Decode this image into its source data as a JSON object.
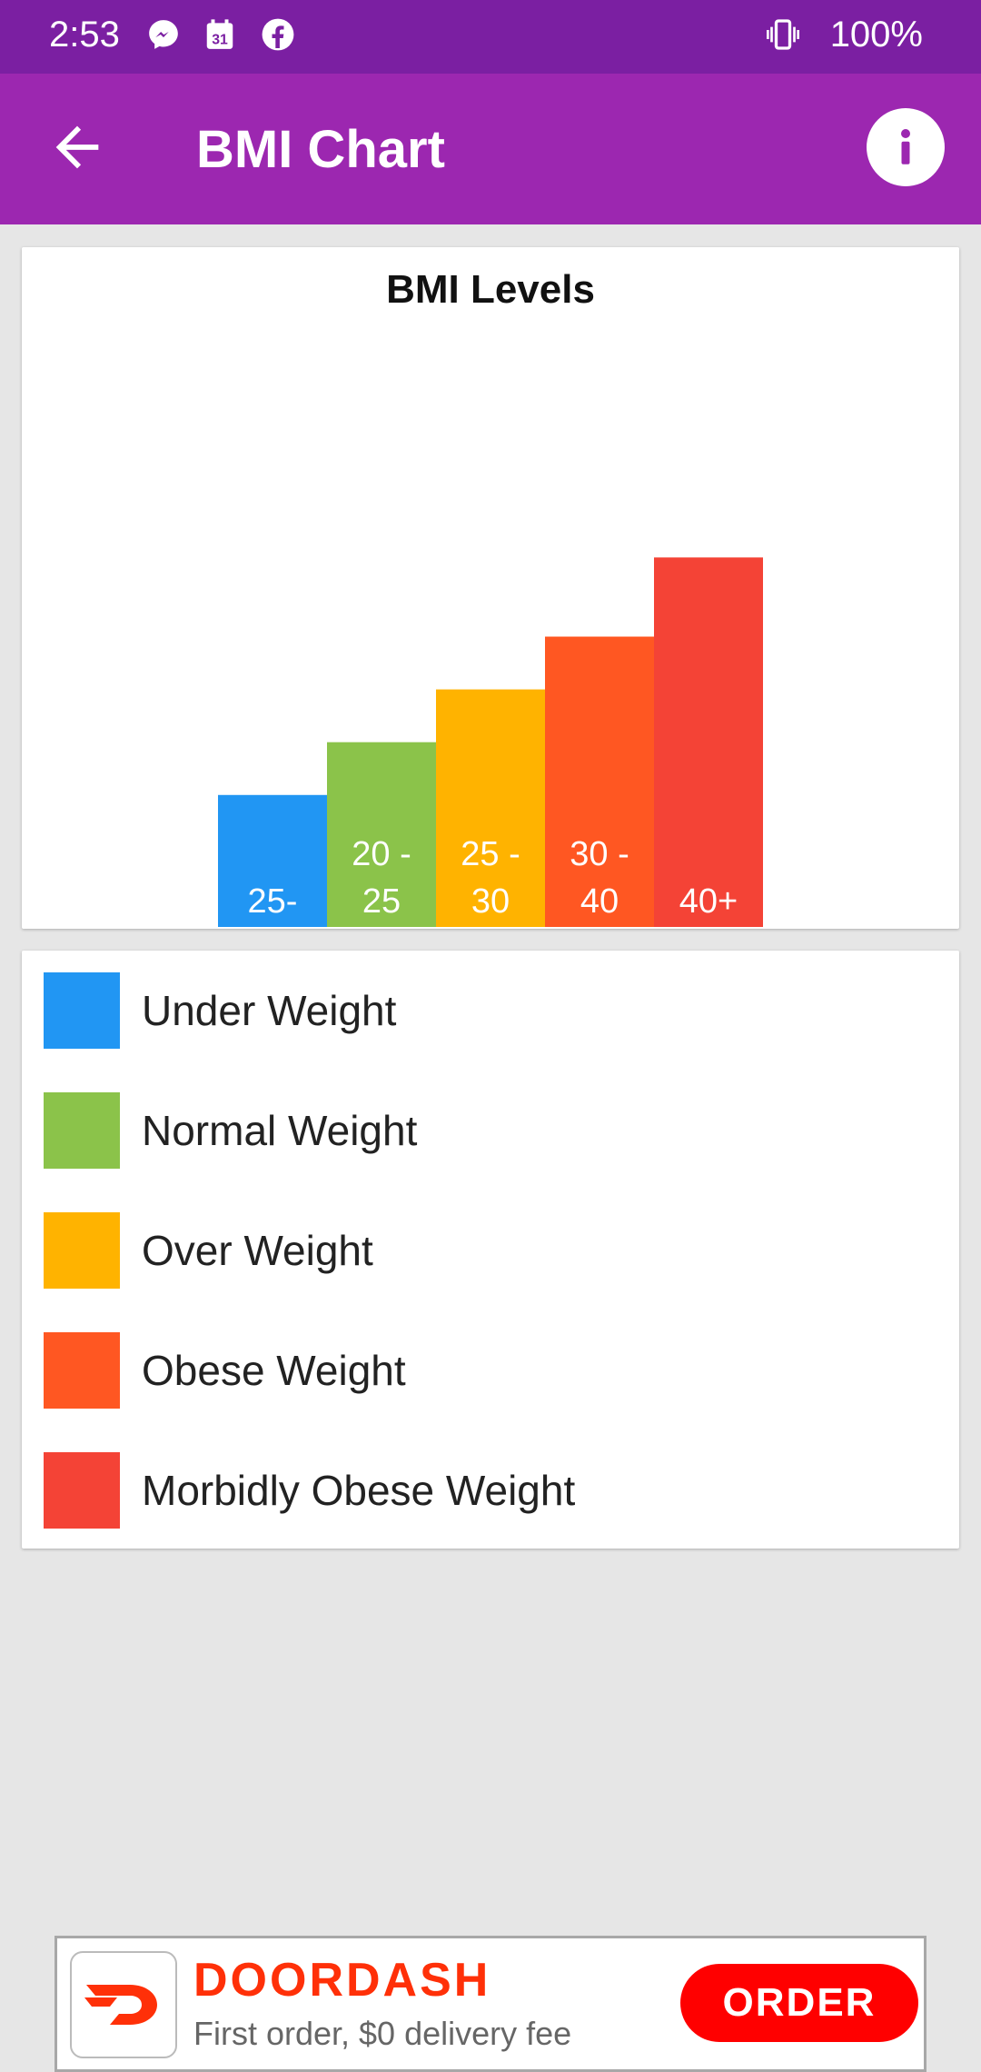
{
  "status_bar": {
    "time": "2:53",
    "battery": "100%",
    "icons": [
      "messenger-icon",
      "calendar-icon",
      "facebook-icon",
      "vibrate-icon"
    ],
    "calendar_day": "31"
  },
  "app_bar": {
    "title": "BMI Chart",
    "back_icon": "back-arrow-icon",
    "info_icon": "info-icon"
  },
  "chart_data": {
    "type": "bar",
    "title": "BMI Levels",
    "categories": [
      "25-",
      "20 - 25",
      "25 - 30",
      "30 - 40",
      "40+"
    ],
    "values": [
      1,
      1.4,
      1.8,
      2.2,
      2.8
    ],
    "colors": [
      "#2196f3",
      "#8bc34a",
      "#ffb300",
      "#ff5722",
      "#f44336"
    ],
    "xlabel": "",
    "ylabel": "",
    "ylim": [
      0,
      4.6
    ],
    "grid": false
  },
  "legend": {
    "items": [
      {
        "label": "Under Weight",
        "color": "#2196f3"
      },
      {
        "label": "Normal Weight",
        "color": "#8bc34a"
      },
      {
        "label": "Over Weight",
        "color": "#ffb300"
      },
      {
        "label": "Obese Weight",
        "color": "#ff5722"
      },
      {
        "label": "Morbidly Obese Weight",
        "color": "#f44336"
      }
    ]
  },
  "ad": {
    "brand": "DOORDASH",
    "subtitle": "First order, $0 delivery fee",
    "cta": "ORDER",
    "logo_icon": "doordash-logo-icon"
  },
  "colors": {
    "status_bar": "#7b1fa2",
    "app_bar": "#9c27b0",
    "background": "#e6e6e6",
    "ad_red": "#ff3008"
  }
}
